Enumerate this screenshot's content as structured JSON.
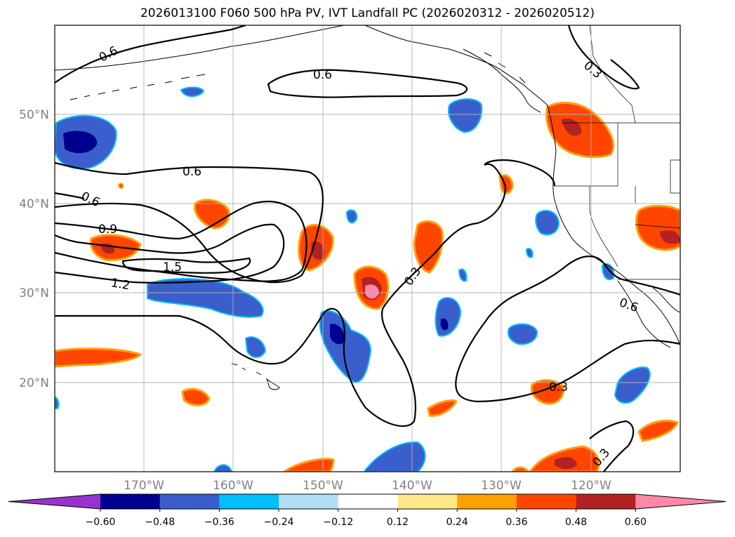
{
  "title": "2026013100 F060 500 hPa PV, IVT Landfall PC (2026020312 - 2026020512)",
  "map": {
    "projection": "PlateCarree",
    "lon_range": [
      -180,
      -110
    ],
    "lat_range": [
      10,
      60
    ],
    "gridlines": true,
    "lat_ticks": [
      "50°N",
      "40°N",
      "30°N",
      "20°N"
    ],
    "lon_ticks": [
      "170°W",
      "160°W",
      "150°W",
      "140°W",
      "130°W",
      "120°W"
    ],
    "tick_color": "#808080"
  },
  "contour_labels": [
    "0.6",
    "0.6",
    "0.6",
    "0.6",
    "0.9",
    "1.5",
    "1.2",
    "0.3",
    "0.3",
    "0.6",
    "0.3",
    "0.3"
  ],
  "colorbar": {
    "ticks": [
      "−0.60",
      "−0.48",
      "−0.36",
      "−0.24",
      "−0.12",
      "0.12",
      "0.24",
      "0.36",
      "0.48",
      "0.60"
    ],
    "colors": [
      "#9932cc",
      "#000090",
      "#3a5fcd",
      "#00bfff",
      "#b0e0f8",
      "#ffffff",
      "#ffe88a",
      "#ffa000",
      "#ff4500",
      "#b22222",
      "#ff88a8"
    ],
    "extend": "both"
  },
  "fill_colors": {
    "dark_blue": "#000090",
    "blue": "#3a5fcd",
    "cyan": "#00bfff",
    "light_blue": "#b0e0f8",
    "yellow": "#ffe88a",
    "orange": "#ffa000",
    "red_orange": "#ff4500",
    "dark_red": "#b22222",
    "pink": "#ff88a8"
  }
}
